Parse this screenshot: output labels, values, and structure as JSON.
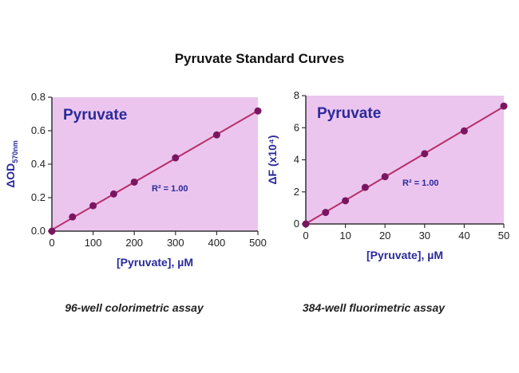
{
  "figure_title": "Pyruvate Standard Curves",
  "colors": {
    "plot_bg": "#ecc5ef",
    "line": "#b5306a",
    "marker": "#7a1660",
    "label": "#2a2a9a"
  },
  "chart_data": [
    {
      "type": "scatter",
      "title": "Pyruvate",
      "annotation": "R² = 1.00",
      "caption": "96-well colorimetric assay",
      "xlabel": "[Pyruvate], µM",
      "ylabel": "ΔOD",
      "ylabel_sub": "570nm",
      "xlim": [
        0,
        500
      ],
      "ylim": [
        0,
        0.8
      ],
      "xticks": [
        0,
        100,
        200,
        300,
        400,
        500
      ],
      "yticks": [
        0.0,
        0.2,
        0.4,
        0.6,
        0.8
      ],
      "ytick_labels": [
        "0.0",
        "0.2",
        "0.4",
        "0.6",
        "0.8"
      ],
      "x": [
        0,
        50,
        100,
        150,
        200,
        300,
        400,
        500
      ],
      "y": [
        0.0,
        0.085,
        0.152,
        0.222,
        0.293,
        0.438,
        0.575,
        0.718
      ],
      "fit_line": true,
      "grid": false
    },
    {
      "type": "scatter",
      "title": "Pyruvate",
      "annotation": "R² = 1.00",
      "caption": "384-well fluorimetric assay",
      "xlabel": "[Pyruvate], µM",
      "ylabel": "ΔF (x10⁴)",
      "xlim": [
        0,
        50
      ],
      "ylim": [
        0,
        8
      ],
      "xticks": [
        0,
        10,
        20,
        30,
        40,
        50
      ],
      "yticks": [
        0,
        2,
        4,
        6,
        8
      ],
      "ytick_labels": [
        "0",
        "2",
        "4",
        "6",
        "8"
      ],
      "x": [
        0,
        5,
        10,
        15,
        20,
        30,
        40,
        50
      ],
      "y": [
        0.0,
        0.72,
        1.45,
        2.28,
        2.95,
        4.38,
        5.8,
        7.35
      ],
      "fit_line": true,
      "grid": false
    }
  ]
}
